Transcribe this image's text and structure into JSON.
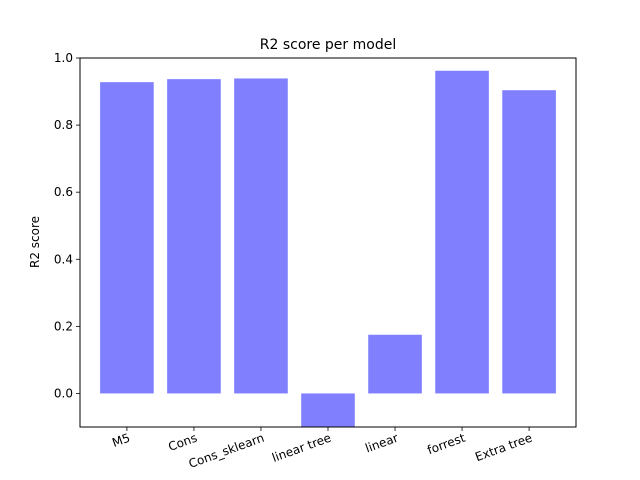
{
  "chart_data": {
    "type": "bar",
    "title": "R2 score per model",
    "xlabel": "",
    "ylabel": "R2 score",
    "categories": [
      "M5",
      "Cons",
      "Cons_sklearn",
      "linear tree",
      "linear",
      "forrest",
      "Extra tree"
    ],
    "values": [
      0.928,
      0.937,
      0.939,
      -0.13,
      0.175,
      0.962,
      0.904
    ],
    "ylim": [
      -0.1,
      1.0
    ],
    "yticks": [
      0.0,
      0.2,
      0.4,
      0.6,
      0.8,
      1.0
    ],
    "ytick_labels": [
      "0.0",
      "0.2",
      "0.4",
      "0.6",
      "0.8",
      "1.0"
    ],
    "bar_color": "#8080ff",
    "grid": false,
    "xtick_rotation": "20 degrees"
  }
}
